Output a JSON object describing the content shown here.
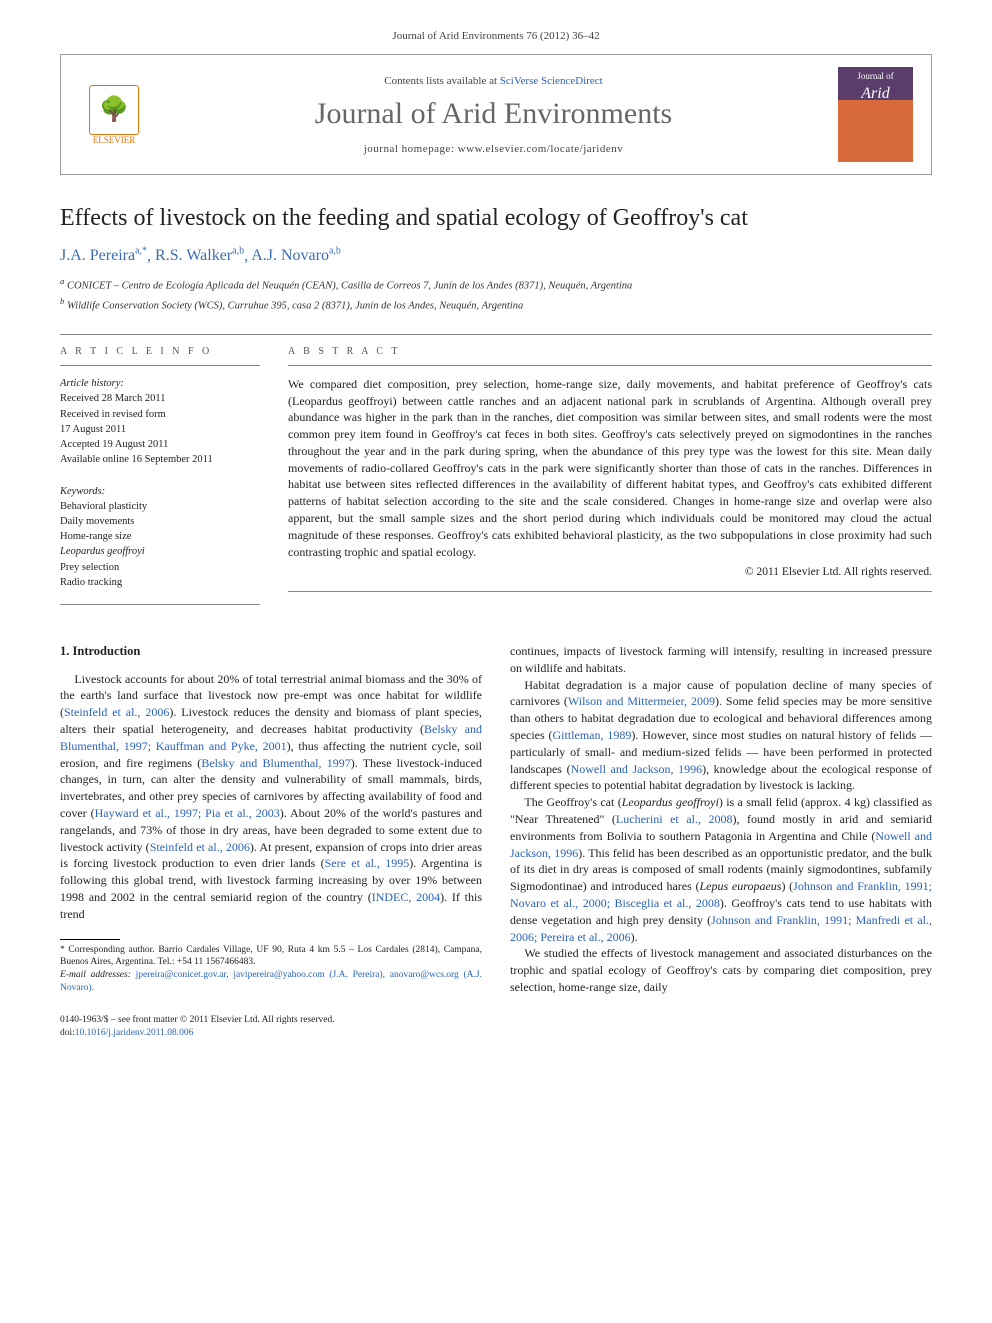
{
  "journal_ref": "Journal of Arid Environments 76 (2012) 36–42",
  "header": {
    "contents_prefix": "Contents lists available at ",
    "contents_link": "SciVerse ScienceDirect",
    "journal_name": "Journal of Arid Environments",
    "homepage_prefix": "journal homepage: ",
    "homepage_url": "www.elsevier.com/locate/jaridenv",
    "publisher": "ELSEVIER",
    "cover_label_top": "Journal of",
    "cover_label_main": "Arid"
  },
  "article": {
    "title": "Effects of livestock on the feeding and spatial ecology of Geoffroy's cat",
    "authors_html": "J.A. Pereira<sup>a,*</sup>, R.S. Walker<sup>a,b</sup>, A.J. Novaro<sup>a,b</sup>",
    "authors": [
      {
        "name": "J.A. Pereira",
        "aff": "a,*"
      },
      {
        "name": "R.S. Walker",
        "aff": "a,b"
      },
      {
        "name": "A.J. Novaro",
        "aff": "a,b"
      }
    ],
    "affiliations": [
      {
        "key": "a",
        "text": "CONICET – Centro de Ecología Aplicada del Neuquén (CEAN), Casilla de Correos 7, Junín de los Andes (8371), Neuquén, Argentina"
      },
      {
        "key": "b",
        "text": "Wildlife Conservation Society (WCS), Curruhue 395, casa 2 (8371), Junín de los Andes, Neuquén, Argentina"
      }
    ]
  },
  "info": {
    "heading": "A R T I C L E   I N F O",
    "history_label": "Article history:",
    "history": [
      "Received 28 March 2011",
      "Received in revised form",
      "17 August 2011",
      "Accepted 19 August 2011",
      "Available online 16 September 2011"
    ],
    "keywords_label": "Keywords:",
    "keywords": [
      "Behavioral plasticity",
      "Daily movements",
      "Home-range size",
      "Leopardus geoffroyi",
      "Prey selection",
      "Radio tracking"
    ]
  },
  "abstract": {
    "heading": "A B S T R A C T",
    "text": "We compared diet composition, prey selection, home-range size, daily movements, and habitat preference of Geoffroy's cats (Leopardus geoffroyi) between cattle ranches and an adjacent national park in scrublands of Argentina. Although overall prey abundance was higher in the park than in the ranches, diet composition was similar between sites, and small rodents were the most common prey item found in Geoffroy's cat feces in both sites. Geoffroy's cats selectively preyed on sigmodontines in the ranches throughout the year and in the park during spring, when the abundance of this prey type was the lowest for this site. Mean daily movements of radio-collared Geoffroy's cats in the park were significantly shorter than those of cats in the ranches. Differences in habitat use between sites reflected differences in the availability of different habitat types, and Geoffroy's cats exhibited different patterns of habitat selection according to the site and the scale considered. Changes in home-range size and overlap were also apparent, but the small sample sizes and the short period during which individuals could be monitored may cloud the actual magnitude of these responses. Geoffroy's cats exhibited behavioral plasticity, as the two subpopulations in close proximity had such contrasting trophic and spatial ecology.",
    "copyright": "© 2011 Elsevier Ltd. All rights reserved."
  },
  "body": {
    "section_number": "1.",
    "section_title": "Introduction",
    "col1_paragraphs": [
      "Livestock accounts for about 20% of total terrestrial animal biomass and the 30% of the earth's land surface that livestock now pre-empt was once habitat for wildlife (<span class='cite'>Steinfeld et al., 2006</span>). Livestock reduces the density and biomass of plant species, alters their spatial heterogeneity, and decreases habitat productivity (<span class='cite'>Belsky and Blumenthal, 1997; Kauffman and Pyke, 2001</span>), thus affecting the nutrient cycle, soil erosion, and fire regimens (<span class='cite'>Belsky and Blumenthal, 1997</span>). These livestock-induced changes, in turn, can alter the density and vulnerability of small mammals, birds, invertebrates, and other prey species of carnivores by affecting availability of food and cover (<span class='cite'>Hayward et al., 1997; Pia et al., 2003</span>). About 20% of the world's pastures and rangelands, and 73% of those in dry areas, have been degraded to some extent due to livestock activity (<span class='cite'>Steinfeld et al., 2006</span>). At present, expansion of crops into drier areas is forcing livestock production to even drier lands (<span class='cite'>Sere et al., 1995</span>). Argentina is following this global trend, with livestock farming increasing by over 19% between 1998 and 2002 in the central semiarid region of the country (<span class='cite'>INDEC, 2004</span>). If this trend"
    ],
    "col2_paragraphs": [
      "continues, impacts of livestock farming will intensify, resulting in increased pressure on wildlife and habitats.",
      "Habitat degradation is a major cause of population decline of many species of carnivores (<span class='cite'>Wilson and Mittermeier, 2009</span>). Some felid species may be more sensitive than others to habitat degradation due to ecological and behavioral differences among species (<span class='cite'>Gittleman, 1989</span>). However, since most studies on natural history of felids — particularly of small- and medium-sized felids — have been performed in protected landscapes (<span class='cite'>Nowell and Jackson, 1996</span>), knowledge about the ecological response of different species to potential habitat degradation by livestock is lacking.",
      "The Geoffroy's cat (<i>Leopardus geoffroyi</i>) is a small felid (approx. 4 kg) classified as \"Near Threatened\" (<span class='cite'>Lucherini et al., 2008</span>), found mostly in arid and semiarid environments from Bolivia to southern Patagonia in Argentina and Chile (<span class='cite'>Nowell and Jackson, 1996</span>). This felid has been described as an opportunistic predator, and the bulk of its diet in dry areas is composed of small rodents (mainly sigmodontines, subfamily Sigmodontinae) and introduced hares (<i>Lepus europaeus</i>) (<span class='cite'>Johnson and Franklin, 1991; Novaro et al., 2000; Bisceglia et al., 2008</span>). Geoffroy's cats tend to use habitats with dense vegetation and high prey density (<span class='cite'>Johnson and Franklin, 1991; Manfredi et al., 2006; Pereira et al., 2006</span>).",
      "We studied the effects of livestock management and associated disturbances on the trophic and spatial ecology of Geoffroy's cats by comparing diet composition, prey selection, home-range size, daily"
    ]
  },
  "footnotes": {
    "corresponding": "* Corresponding author. Barrio Cardales Village, UF 90, Ruta 4 km 5.5 – Los Cardales (2814), Campana, Buenos Aires, Argentina. Tel.: +54 11 1567466483.",
    "email_label": "E-mail addresses:",
    "emails": "jpereira@conicet.gov.ar, javipereira@yahoo.com (J.A. Pereira), anovaro@wcs.org (A.J. Novaro)."
  },
  "bottom": {
    "issn_line": "0140-1963/$ – see front matter © 2011 Elsevier Ltd. All rights reserved.",
    "doi_label": "doi:",
    "doi": "10.1016/j.jaridenv.2011.08.006"
  },
  "colors": {
    "link": "#2a62b8",
    "logo": "#e6730f",
    "journal_title": "#666666",
    "cover_top": "#5a3d6b",
    "cover_bottom": "#d96b3a"
  }
}
